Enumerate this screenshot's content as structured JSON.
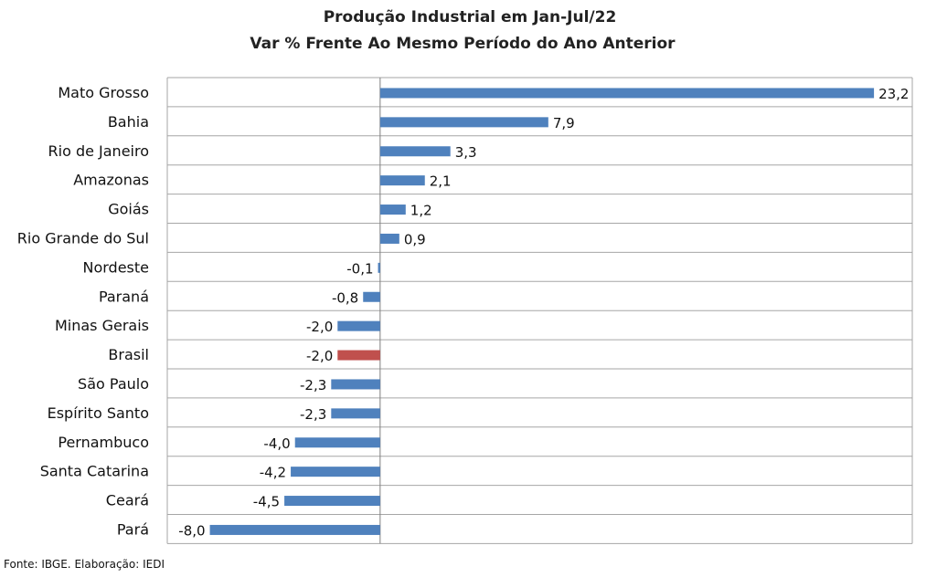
{
  "chart_data": {
    "type": "bar",
    "orientation": "horizontal",
    "title": "Produção Industrial em Jan-Jul/22",
    "subtitle": "Var % Frente Ao Mesmo Período do Ano Anterior",
    "categories": [
      "Mato Grosso",
      "Bahia",
      "Rio de Janeiro",
      "Amazonas",
      "Goiás",
      "Rio Grande do Sul",
      "Nordeste",
      "Paraná",
      "Minas Gerais",
      "Brasil",
      "São Paulo",
      "Espírito Santo",
      "Pernambuco",
      "Santa Catarina",
      "Ceará",
      "Pará"
    ],
    "values": [
      23.2,
      7.9,
      3.3,
      2.1,
      1.2,
      0.9,
      -0.1,
      -0.8,
      -2.0,
      -2.0,
      -2.3,
      -2.3,
      -4.0,
      -4.2,
      -4.5,
      -8.0
    ],
    "value_labels": [
      "23,2",
      "7,9",
      "3,3",
      "2,1",
      "1,2",
      "0,9",
      "-0,1",
      "-0,8",
      "-2,0",
      "-2,0",
      "-2,3",
      "-2,3",
      "-4,0",
      "-4,2",
      "-4,5",
      "-8,0"
    ],
    "xlim": [
      -10,
      25
    ],
    "grid": true,
    "legend": "none",
    "colors": {
      "default": "#4f81bd",
      "highlight": "#c0504d"
    },
    "highlight_category": "Brasil"
  },
  "source": "Fonte: IBGE. Elaboração: IEDI"
}
